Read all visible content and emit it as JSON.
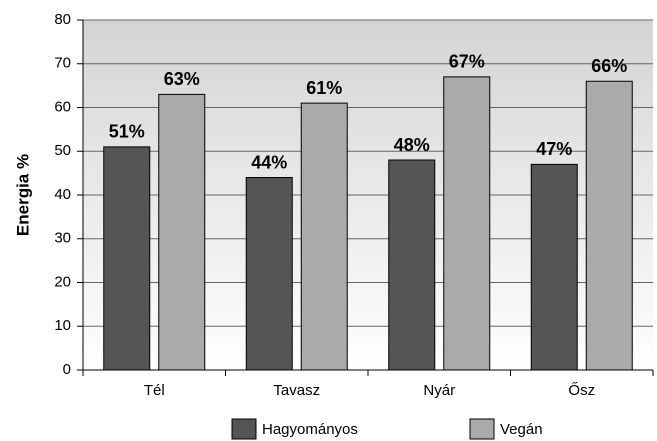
{
  "chart_data": {
    "type": "bar",
    "y_label": "Energia %",
    "categories": [
      "Tél",
      "Tavasz",
      "Nyár",
      "Ősz"
    ],
    "series": [
      {
        "name": "Hagyományos",
        "color": "#555555",
        "values": [
          51,
          44,
          48,
          47
        ],
        "value_labels": [
          "51%",
          "44%",
          "48%",
          "47%"
        ]
      },
      {
        "name": "Vegán",
        "color": "#aaaaaa",
        "values": [
          63,
          61,
          67,
          66
        ],
        "value_labels": [
          "63%",
          "61%",
          "67%",
          "66%"
        ]
      }
    ],
    "ylim": [
      0,
      80
    ],
    "yticks": [
      0,
      10,
      20,
      30,
      40,
      50,
      60,
      70,
      80
    ],
    "grid": true,
    "legend": "bottom"
  }
}
